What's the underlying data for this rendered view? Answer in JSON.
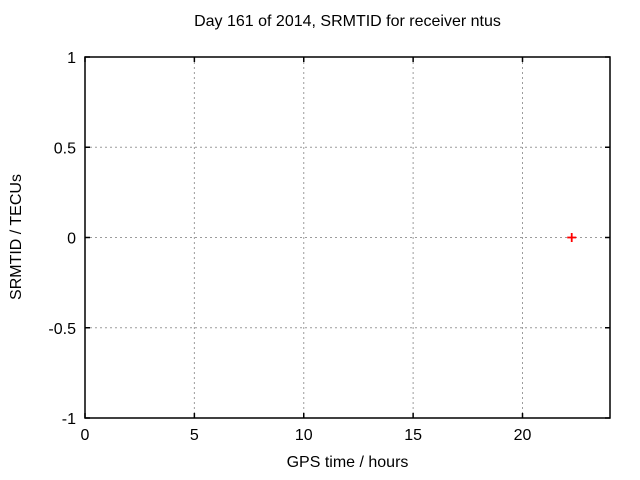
{
  "figure": {
    "background": "#ffffff"
  },
  "chart_data": {
    "type": "scatter",
    "title": "Day 161 of 2014, SRMTID for receiver ntus",
    "xlabel": "GPS time / hours",
    "ylabel": "SRMTID / TECUs",
    "xlim": [
      0,
      24
    ],
    "ylim": [
      -1,
      1
    ],
    "xticks": {
      "values": [
        0,
        5,
        10,
        15,
        20
      ],
      "labels": [
        "0",
        "5",
        "10",
        "15",
        "20"
      ]
    },
    "yticks": {
      "values": [
        -1,
        -0.5,
        0,
        0.5,
        1
      ],
      "labels": [
        "-1",
        "-0.5",
        "0",
        "0.5",
        "1"
      ]
    },
    "grid": true,
    "legend": "none",
    "series": [
      {
        "name": "SRMTID",
        "marker": "plus",
        "color": "#ff0000",
        "points": [
          {
            "x": 22.25,
            "y": 0
          }
        ]
      }
    ],
    "colors": {
      "border": "#000000",
      "grid": "#9c9c9c",
      "text": "#000000"
    }
  }
}
